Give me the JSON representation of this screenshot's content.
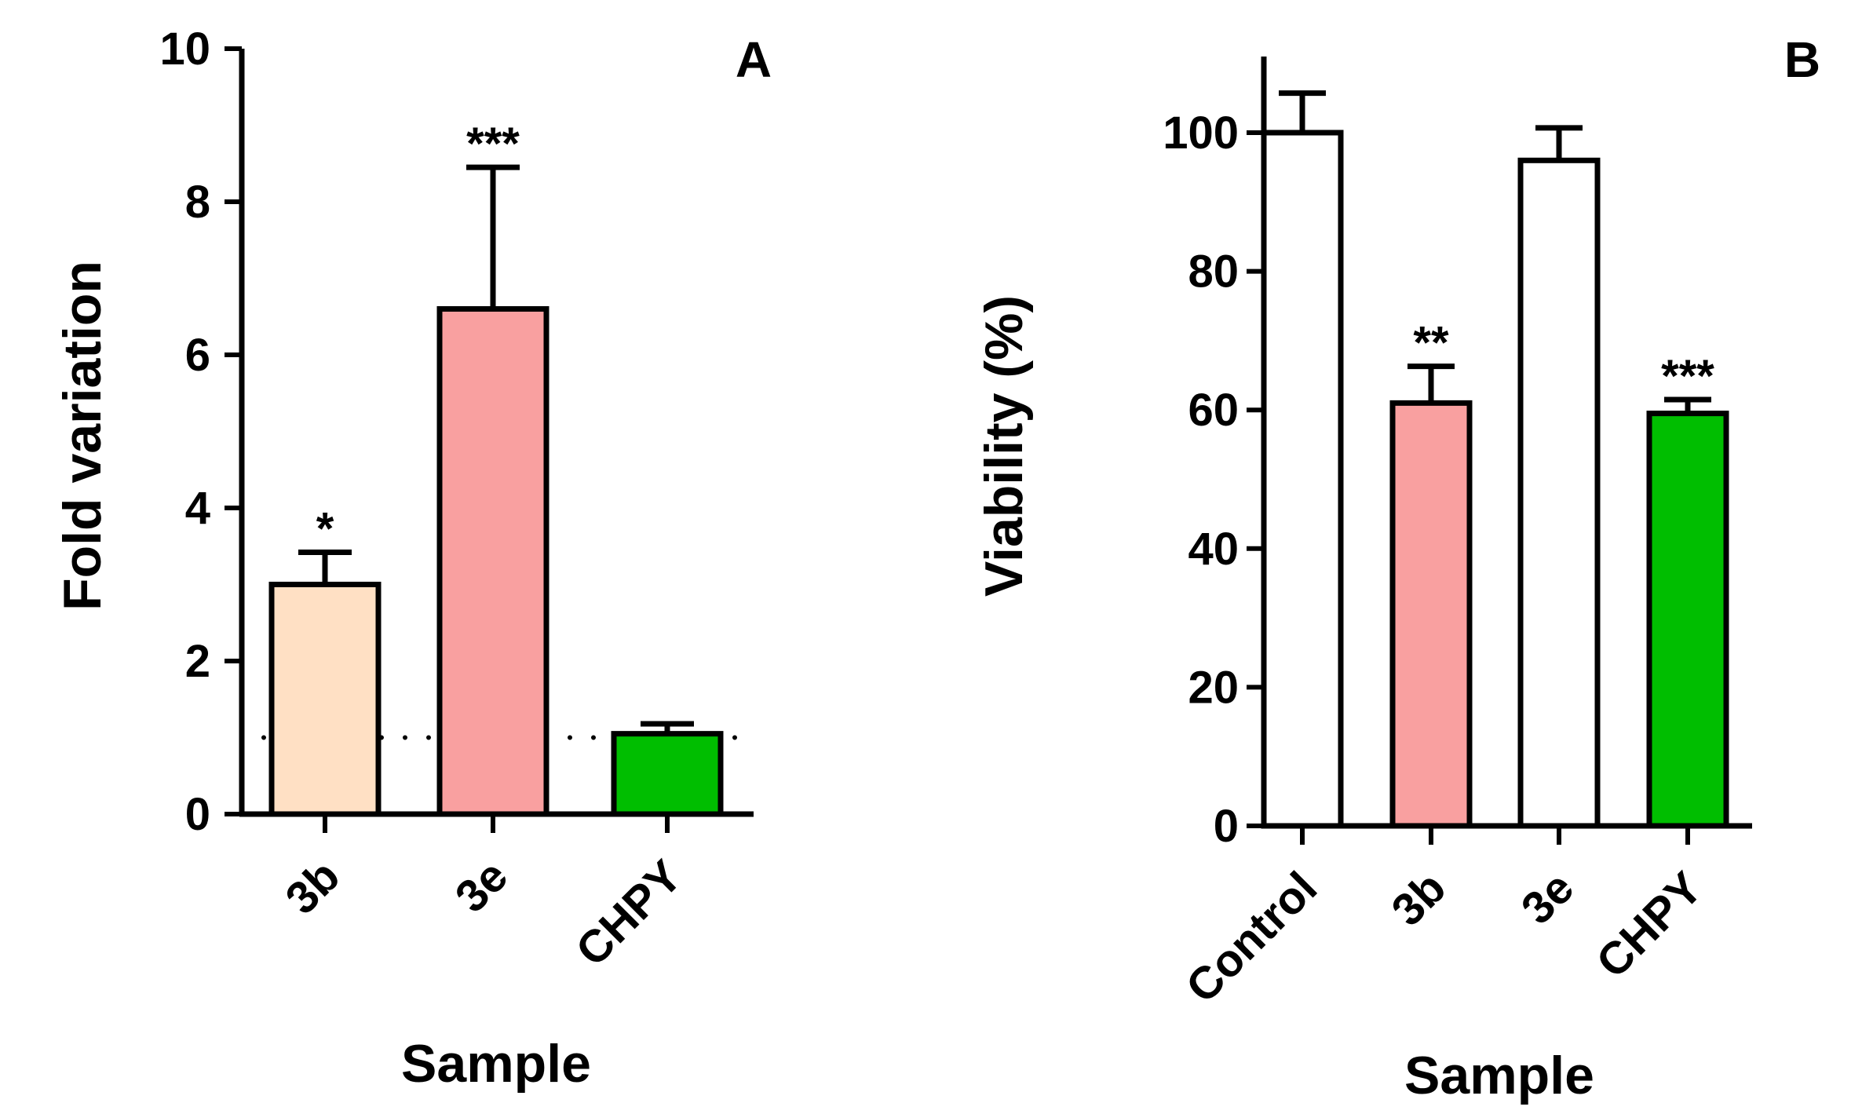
{
  "chart_data": [
    {
      "type": "bar",
      "panel_label": "A",
      "xlabel": "Sample",
      "ylabel": "Fold variation",
      "ylim": [
        0,
        10
      ],
      "yticks": [
        "0",
        "2",
        "4",
        "6",
        "8",
        "10"
      ],
      "categories": [
        "3b",
        "3e",
        "CHPY"
      ],
      "values": [
        3.0,
        6.6,
        1.05
      ],
      "errors": [
        0.42,
        1.85,
        0.13
      ],
      "significance": [
        "*",
        "***",
        ""
      ],
      "colors": [
        "#FFE0C4",
        "#F9A0A0",
        "#00BE00"
      ],
      "reference_line": 1.0
    },
    {
      "type": "bar",
      "panel_label": "B",
      "xlabel": "Sample",
      "ylabel": "Viability (%)",
      "ylim": [
        0,
        110
      ],
      "yticks": [
        "0",
        "20",
        "40",
        "60",
        "80",
        "100"
      ],
      "categories": [
        "Control",
        "3b",
        "3e",
        "CHPY"
      ],
      "values": [
        100,
        61,
        96,
        59.5
      ],
      "errors": [
        5.7,
        5.3,
        4.7,
        2.0
      ],
      "significance": [
        "",
        "**",
        "",
        "***"
      ],
      "colors": [
        "#FFFFFF",
        "#F9A0A0",
        "#FFFFFF",
        "#00BE00"
      ]
    }
  ]
}
